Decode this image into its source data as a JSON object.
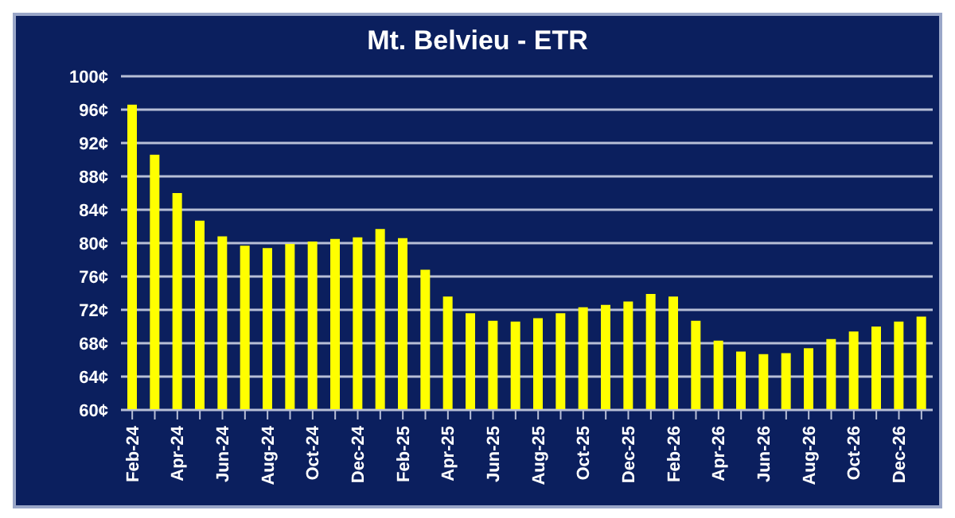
{
  "chart_data": {
    "type": "bar",
    "title": "Mt. Belvieu - ETR",
    "categories": [
      "Feb-24",
      null,
      "Apr-24",
      null,
      "Jun-24",
      null,
      "Aug-24",
      null,
      "Oct-24",
      null,
      "Dec-24",
      null,
      "Feb-25",
      null,
      "Apr-25",
      null,
      "Jun-25",
      null,
      "Aug-25",
      null,
      "Oct-25",
      null,
      "Dec-25",
      null,
      "Feb-26",
      null,
      "Apr-26",
      null,
      "Jun-26",
      null,
      "Aug-26",
      null,
      "Oct-26",
      null,
      "Dec-26",
      null
    ],
    "values": [
      96.6,
      90.6,
      86,
      82.7,
      80.8,
      79.7,
      79.4,
      79.9,
      80.2,
      80.5,
      80.7,
      81.7,
      80.6,
      76.8,
      73.6,
      71.6,
      70.7,
      70.6,
      71.0,
      71.6,
      72.3,
      72.6,
      73.0,
      73.9,
      73.6,
      70.7,
      68.3,
      67.0,
      66.7,
      66.8,
      67.4,
      68.5,
      69.4,
      70.0,
      70.6,
      71.2
    ],
    "color": "#ffff00",
    "ylim": [
      60,
      100
    ],
    "yticks": [
      {
        "value": 60,
        "label": "60¢"
      },
      {
        "value": 64,
        "label": "64¢"
      },
      {
        "value": 68,
        "label": "68¢"
      },
      {
        "value": 72,
        "label": "72¢"
      },
      {
        "value": 76,
        "label": "76¢"
      },
      {
        "value": 80,
        "label": "80¢"
      },
      {
        "value": 84,
        "label": "84¢"
      },
      {
        "value": 88,
        "label": "88¢"
      },
      {
        "value": 92,
        "label": "92¢"
      },
      {
        "value": 96,
        "label": "96¢"
      },
      {
        "value": 100,
        "label": "100¢"
      }
    ],
    "grid": "y"
  }
}
